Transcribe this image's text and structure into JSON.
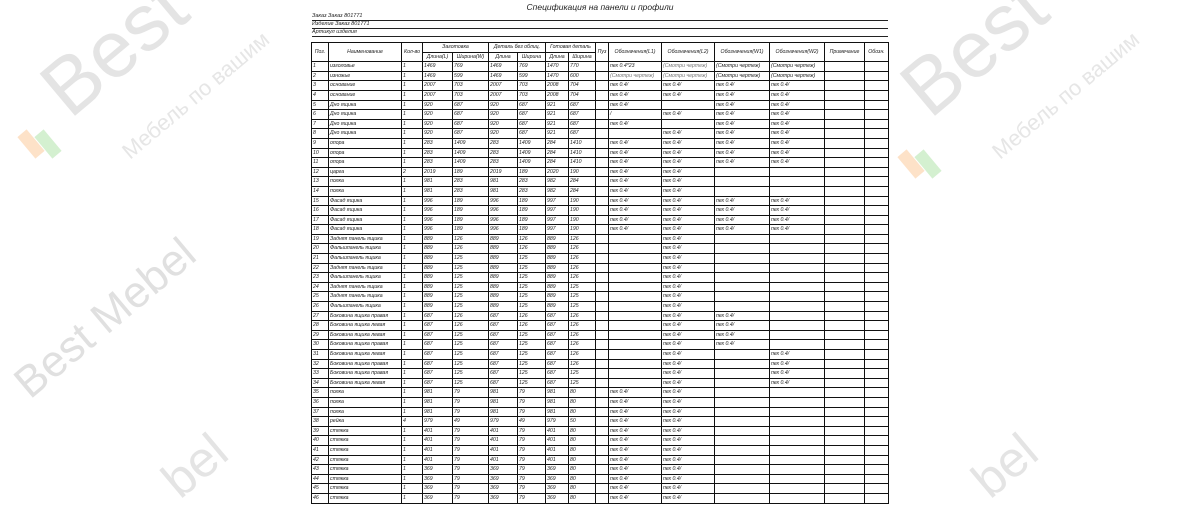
{
  "document": {
    "title": "Спецификация на панели и профили",
    "order_line": "Заказ Заказ 801771",
    "product_line": "Изделие Заказ 801771",
    "article_line": "Артикул изделия"
  },
  "watermark": {
    "brand": "Best Mebel",
    "slogan": "Мебель по вашим размерам",
    "color": "#d9d9d9"
  },
  "table": {
    "headers": {
      "pos": "Поз.",
      "name": "Наименование",
      "qty": "Кол-во",
      "blank": "Заготовка",
      "detail": "Деталь без облиц.",
      "finished": "Готовая деталь",
      "length_l": "Длина(L)",
      "width_w": "Ширина(W)",
      "length": "Длина",
      "width": "Ширина",
      "length2": "Длина",
      "width2": "Ширина",
      "puz": "Пуз",
      "l1": "Обозначения(L1)",
      "l2": "Обозначения(L2)",
      "w1": "Обозначения(W1)",
      "w2": "Обозначения(W2)",
      "note": "Примечание",
      "obozn": "Обозн."
    },
    "rows": [
      [
        "1",
        "изголовье",
        "1",
        "1469",
        "769",
        "1469",
        "769",
        "1470",
        "770",
        "",
        "пех 0.4*23",
        "(Смотри чертеж)",
        "(Смотри чертеж)",
        "(Смотри чертеж)",
        "",
        ""
      ],
      [
        "2",
        "изножье",
        "1",
        "1469",
        "599",
        "1469",
        "599",
        "1470",
        "600",
        "",
        "(Смотри чертеж)",
        "(Смотри чертеж)",
        "(Смотри чертеж)",
        "(Смотри чертеж)",
        "",
        ""
      ],
      [
        "3",
        "основание",
        "1",
        "2007",
        "703",
        "2007",
        "703",
        "2008",
        "704",
        "",
        "пех 0.4/",
        "пех 0.4/",
        "пех 0.4/",
        "пех 0.4/",
        "",
        ""
      ],
      [
        "4",
        "основание",
        "1",
        "2007",
        "703",
        "2007",
        "703",
        "2008",
        "704",
        "",
        "пех 0.4/",
        "пех 0.4/",
        "пех 0.4/",
        "пех 0.4/",
        "",
        ""
      ],
      [
        "5",
        "Дно ящика",
        "1",
        "920",
        "687",
        "920",
        "687",
        "921",
        "687",
        "",
        "пех 0.4/",
        "",
        "пех 0.4/",
        "пех 0.4/",
        "",
        ""
      ],
      [
        "6",
        "Дно ящика",
        "1",
        "920",
        "687",
        "920",
        "687",
        "921",
        "687",
        "",
        "/",
        "пех 0.4/",
        "пех 0.4/",
        "пех 0.4/",
        "",
        ""
      ],
      [
        "7",
        "Дно ящика",
        "1",
        "920",
        "687",
        "920",
        "687",
        "921",
        "687",
        "",
        "пех 0.4/",
        "",
        "пех 0.4/",
        "пех 0.4/",
        "",
        ""
      ],
      [
        "8",
        "Дно ящика",
        "1",
        "920",
        "687",
        "920",
        "687",
        "921",
        "687",
        "",
        "",
        "пех 0.4/",
        "пех 0.4/",
        "пех 0.4/",
        "",
        ""
      ],
      [
        "9",
        "опора",
        "1",
        "283",
        "1409",
        "283",
        "1409",
        "284",
        "1410",
        "",
        "пех 0.4/",
        "пех 0.4/",
        "пех 0.4/",
        "пех 0.4/",
        "",
        ""
      ],
      [
        "10",
        "опора",
        "1",
        "283",
        "1409",
        "283",
        "1409",
        "284",
        "1410",
        "",
        "пех 0.4/",
        "пех 0.4/",
        "пех 0.4/",
        "пех 0.4/",
        "",
        ""
      ],
      [
        "11",
        "опора",
        "1",
        "283",
        "1409",
        "283",
        "1409",
        "284",
        "1410",
        "",
        "пех 0.4/",
        "пех 0.4/",
        "пех 0.4/",
        "пех 0.4/",
        "",
        ""
      ],
      [
        "12",
        "царга",
        "2",
        "2019",
        "189",
        "2019",
        "189",
        "2020",
        "190",
        "",
        "пех 0.4/",
        "пех 0.4/",
        "",
        "",
        "",
        ""
      ],
      [
        "13",
        "полка",
        "1",
        "981",
        "283",
        "981",
        "283",
        "982",
        "284",
        "",
        "пех 0.4/",
        "пех 0.4/",
        "",
        "",
        "",
        ""
      ],
      [
        "14",
        "полка",
        "1",
        "981",
        "283",
        "981",
        "283",
        "982",
        "284",
        "",
        "пех 0.4/",
        "пех 0.4/",
        "",
        "",
        "",
        ""
      ],
      [
        "15",
        "Фасад ящика",
        "1",
        "996",
        "189",
        "996",
        "189",
        "997",
        "190",
        "",
        "пех 0.4/",
        "пех 0.4/",
        "пех 0.4/",
        "пех 0.4/",
        "",
        ""
      ],
      [
        "16",
        "Фасад ящика",
        "1",
        "996",
        "189",
        "996",
        "189",
        "997",
        "190",
        "",
        "пех 0.4/",
        "пех 0.4/",
        "пех 0.4/",
        "пех 0.4/",
        "",
        ""
      ],
      [
        "17",
        "Фасад ящика",
        "1",
        "996",
        "189",
        "996",
        "189",
        "997",
        "190",
        "",
        "пех 0.4/",
        "пех 0.4/",
        "пех 0.4/",
        "пех 0.4/",
        "",
        ""
      ],
      [
        "18",
        "Фасад ящика",
        "1",
        "996",
        "189",
        "996",
        "189",
        "997",
        "190",
        "",
        "пех 0.4/",
        "пех 0.4/",
        "пех 0.4/",
        "пех 0.4/",
        "",
        ""
      ],
      [
        "19",
        "Задняя панель ящика",
        "1",
        "889",
        "126",
        "889",
        "126",
        "889",
        "126",
        "",
        "",
        "пех 0.4/",
        "",
        "",
        "",
        ""
      ],
      [
        "20",
        "Фальшпанель ящика",
        "1",
        "889",
        "126",
        "889",
        "126",
        "889",
        "126",
        "",
        "",
        "пех 0.4/",
        "",
        "",
        "",
        ""
      ],
      [
        "21",
        "Фальшпанель ящика",
        "1",
        "889",
        "125",
        "889",
        "125",
        "889",
        "126",
        "",
        "",
        "пех 0.4/",
        "",
        "",
        "",
        ""
      ],
      [
        "22",
        "Задняя панель ящика",
        "1",
        "889",
        "125",
        "889",
        "125",
        "889",
        "126",
        "",
        "",
        "пех 0.4/",
        "",
        "",
        "",
        ""
      ],
      [
        "23",
        "Фальшпанель ящика",
        "1",
        "889",
        "125",
        "889",
        "125",
        "889",
        "126",
        "",
        "",
        "пех 0.4/",
        "",
        "",
        "",
        ""
      ],
      [
        "24",
        "Задняя панель ящика",
        "1",
        "889",
        "125",
        "889",
        "125",
        "889",
        "125",
        "",
        "",
        "пех 0.4/",
        "",
        "",
        "",
        ""
      ],
      [
        "25",
        "Задняя панель ящика",
        "1",
        "889",
        "125",
        "889",
        "125",
        "889",
        "125",
        "",
        "",
        "пех 0.4/",
        "",
        "",
        "",
        ""
      ],
      [
        "26",
        "Фальшпанель ящика",
        "1",
        "889",
        "125",
        "889",
        "125",
        "889",
        "125",
        "",
        "",
        "пех 0.4/",
        "",
        "",
        "",
        ""
      ],
      [
        "27",
        "Боковина ящика правая",
        "1",
        "687",
        "126",
        "687",
        "126",
        "687",
        "126",
        "",
        "",
        "пех 0.4/",
        "пех 0.4/",
        "",
        "",
        ""
      ],
      [
        "28",
        "Боковина ящика левая",
        "1",
        "687",
        "126",
        "687",
        "126",
        "687",
        "126",
        "",
        "",
        "пех 0.4/",
        "пех 0.4/",
        "",
        "",
        ""
      ],
      [
        "29",
        "Боковина ящика левая",
        "1",
        "687",
        "125",
        "687",
        "125",
        "687",
        "126",
        "",
        "",
        "пех 0.4/",
        "пех 0.4/",
        "",
        "",
        ""
      ],
      [
        "30",
        "Боковина ящика правая",
        "1",
        "687",
        "125",
        "687",
        "125",
        "687",
        "126",
        "",
        "",
        "пех 0.4/",
        "пех 0.4/",
        "",
        "",
        ""
      ],
      [
        "31",
        "Боковина ящика левая",
        "1",
        "687",
        "125",
        "687",
        "125",
        "687",
        "126",
        "",
        "",
        "пех 0.4/",
        "",
        "пех 0.4/",
        "",
        ""
      ],
      [
        "32",
        "Боковина ящика правая",
        "1",
        "687",
        "125",
        "687",
        "125",
        "687",
        "126",
        "",
        "",
        "пех 0.4/",
        "",
        "пех 0.4/",
        "",
        ""
      ],
      [
        "33",
        "Боковина ящика правая",
        "1",
        "687",
        "125",
        "687",
        "125",
        "687",
        "125",
        "",
        "",
        "пех 0.4/",
        "",
        "пех 0.4/",
        "",
        ""
      ],
      [
        "34",
        "Боковина ящика левая",
        "1",
        "687",
        "125",
        "687",
        "125",
        "687",
        "125",
        "",
        "",
        "пех 0.4/",
        "",
        "пех 0.4/",
        "",
        ""
      ],
      [
        "35",
        "полка",
        "1",
        "981",
        "79",
        "981",
        "79",
        "981",
        "80",
        "",
        "пех 0.4/",
        "пех 0.4/",
        "",
        "",
        "",
        ""
      ],
      [
        "36",
        "полка",
        "1",
        "981",
        "79",
        "981",
        "79",
        "981",
        "80",
        "",
        "пех 0.4/",
        "пех 0.4/",
        "",
        "",
        "",
        ""
      ],
      [
        "37",
        "полка",
        "1",
        "981",
        "79",
        "981",
        "79",
        "981",
        "80",
        "",
        "пех 0.4/",
        "пех 0.4/",
        "",
        "",
        "",
        ""
      ],
      [
        "38",
        "рейка",
        "4",
        "979",
        "49",
        "979",
        "49",
        "979",
        "50",
        "",
        "пех 0.4/",
        "пех 0.4/",
        "",
        "",
        "",
        ""
      ],
      [
        "39",
        "стяжка",
        "1",
        "401",
        "79",
        "401",
        "79",
        "401",
        "80",
        "",
        "пех 0.4/",
        "пех 0.4/",
        "",
        "",
        "",
        ""
      ],
      [
        "40",
        "стяжка",
        "1",
        "401",
        "79",
        "401",
        "79",
        "401",
        "80",
        "",
        "пех 0.4/",
        "пех 0.4/",
        "",
        "",
        "",
        ""
      ],
      [
        "41",
        "стяжка",
        "1",
        "401",
        "79",
        "401",
        "79",
        "401",
        "80",
        "",
        "пех 0.4/",
        "пех 0.4/",
        "",
        "",
        "",
        ""
      ],
      [
        "42",
        "стяжка",
        "1",
        "401",
        "79",
        "401",
        "79",
        "401",
        "80",
        "",
        "пех 0.4/",
        "пех 0.4/",
        "",
        "",
        "",
        ""
      ],
      [
        "43",
        "стяжка",
        "1",
        "369",
        "79",
        "369",
        "79",
        "369",
        "80",
        "",
        "пех 0.4/",
        "пех 0.4/",
        "",
        "",
        "",
        ""
      ],
      [
        "44",
        "стяжка",
        "1",
        "369",
        "79",
        "369",
        "79",
        "369",
        "80",
        "",
        "пех 0.4/",
        "пех 0.4/",
        "",
        "",
        "",
        ""
      ],
      [
        "45",
        "стяжка",
        "1",
        "369",
        "79",
        "369",
        "79",
        "369",
        "80",
        "",
        "пех 0.4/",
        "пех 0.4/",
        "",
        "",
        "",
        ""
      ],
      [
        "46",
        "стяжка",
        "1",
        "369",
        "79",
        "369",
        "79",
        "369",
        "80",
        "",
        "пех 0.4/",
        "пех 0.4/",
        "",
        "",
        "",
        ""
      ]
    ]
  }
}
